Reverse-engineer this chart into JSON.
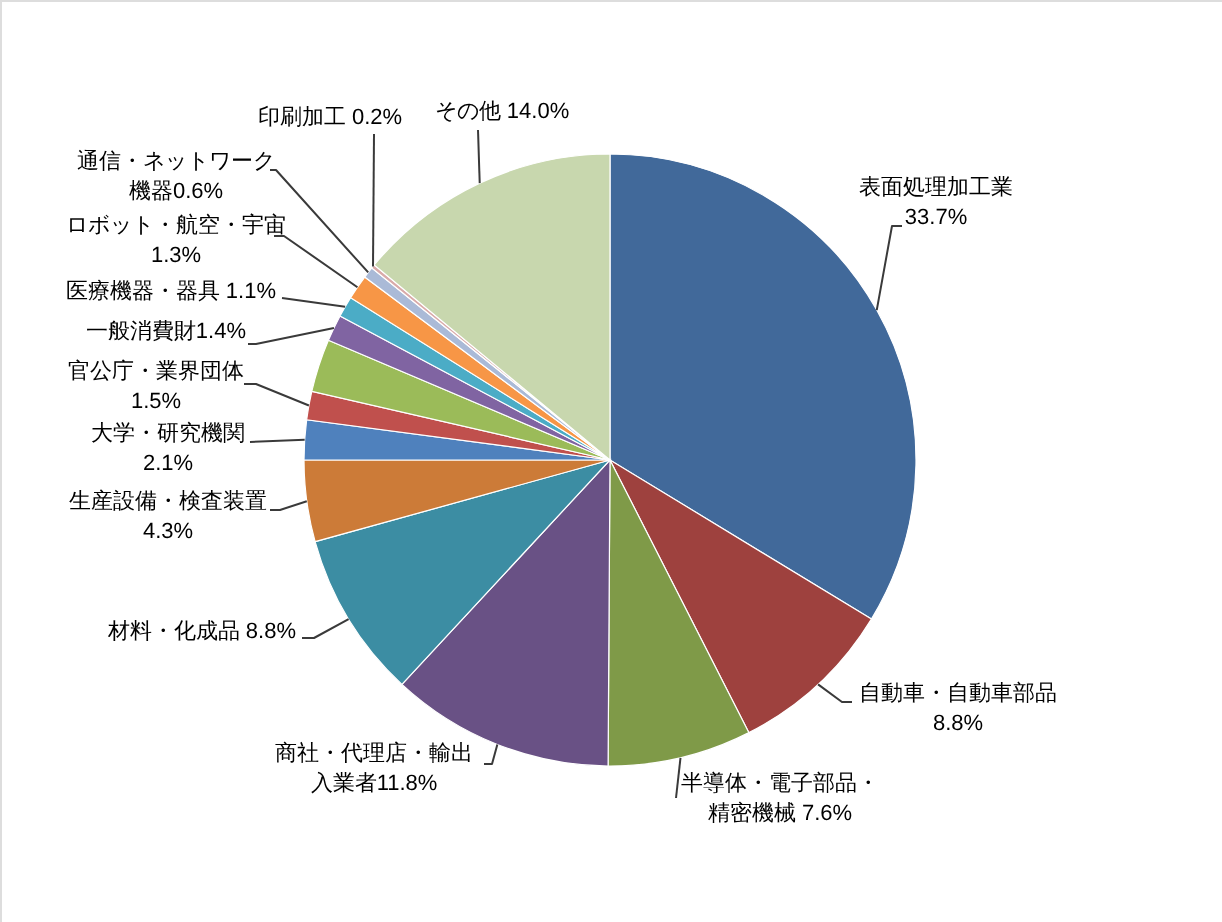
{
  "chart_data": {
    "type": "pie",
    "categories": [
      "表面処理加工業",
      "自動車・自動車部品",
      "半導体・電子部品・精密機械",
      "商社・代理店・輸出入業者",
      "材料・化成品",
      "生産設備・検査装置",
      "大学・研究機関",
      "官公庁・業界団体",
      null,
      "一般消費財",
      "医療機器・器具",
      "ロボット・航空・宇宙",
      "通信・ネットワーク機器",
      "印刷加工",
      "その他"
    ],
    "values": [
      33.7,
      8.8,
      7.6,
      11.8,
      8.8,
      4.3,
      2.1,
      1.5,
      2.8,
      1.4,
      1.1,
      1.3,
      0.6,
      0.2,
      14.0
    ],
    "colors": [
      "#41699a",
      "#9e413e",
      "#7f9a48",
      "#695185",
      "#3c8da3",
      "#cc7b38",
      "#4f81bd",
      "#c0504d",
      "#9bbb59",
      "#8064a2",
      "#4bacc6",
      "#f79646",
      "#aabad7",
      "#d9aaa9",
      "#c8d7ae"
    ],
    "value_labels": [
      "33.7%",
      "8.8%",
      "7.6%",
      "11.8%",
      "8.8%",
      "4.3%",
      "2.1%",
      "1.5%",
      null,
      "1.4%",
      "1.1%",
      "1.3%",
      "0.6%",
      "0.2%",
      "14.0%"
    ]
  }
}
